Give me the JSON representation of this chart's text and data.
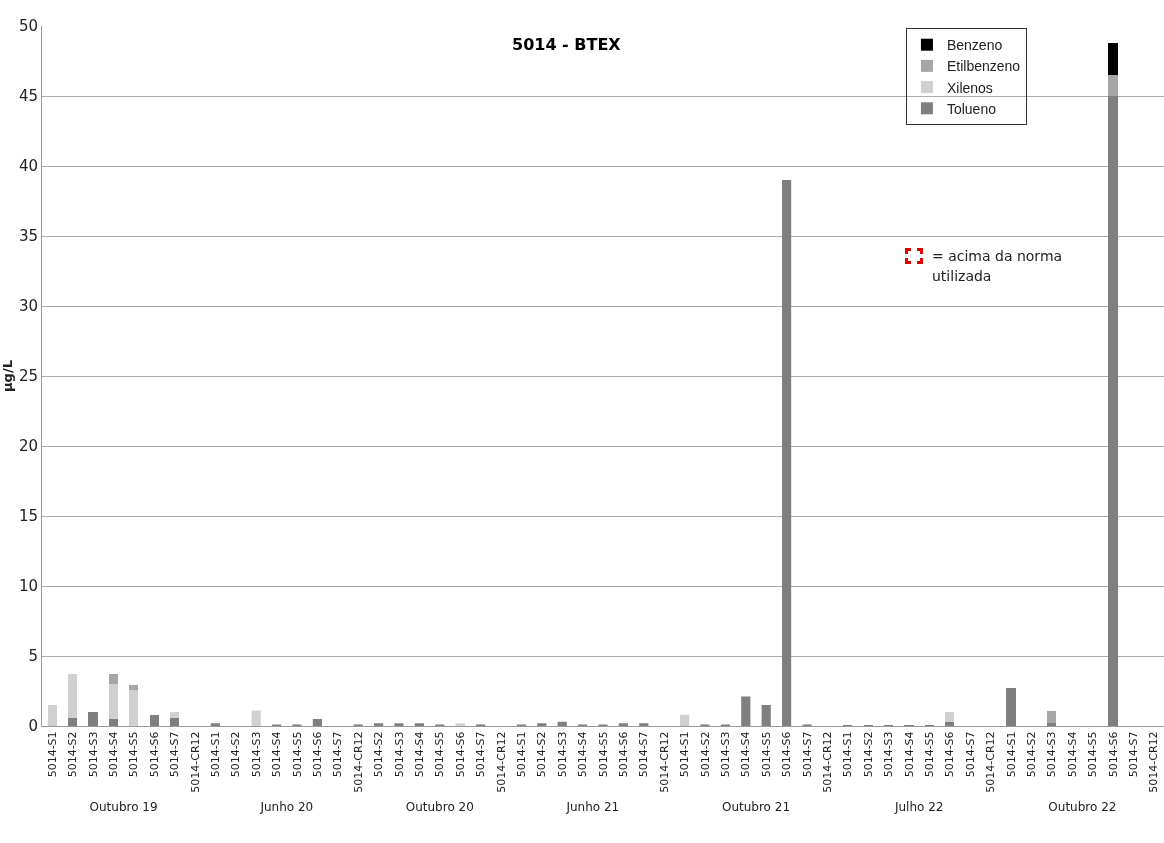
{
  "chart_data": [
    {
      "type": "bar",
      "stacked": true,
      "ylabel": "µg/L",
      "xlabel": "Outubro 19",
      "categories": [
        "5014-S1",
        "5014-S2",
        "5014-S3",
        "5014-S4",
        "5014-S5",
        "5014-S6",
        "5014-S7",
        "5014-CR12"
      ],
      "ylim": [
        0,
        50
      ],
      "yticks": [
        0,
        5,
        10,
        15,
        20,
        25,
        30,
        35,
        40,
        45,
        50
      ],
      "grid": "y",
      "legend": false,
      "series": [
        {
          "color": "#7f7f7f",
          "values": [
            0,
            0.6,
            1.0,
            0.5,
            0,
            0.8,
            0.6,
            0
          ]
        },
        {
          "color": "#d0d0d0",
          "values": [
            1.5,
            3.1,
            0,
            2.5,
            2.6,
            0,
            0.4,
            0
          ]
        },
        {
          "color": "#a6a6a6",
          "values": [
            0,
            0,
            0,
            0.7,
            0.3,
            0,
            0,
            0
          ]
        }
      ]
    },
    {
      "type": "bar",
      "xlabel": "Junho 20",
      "categories": [
        "5014-S1",
        "5014-S2",
        "5014-S3",
        "5014-S4",
        "5014-S5",
        "5014-S6",
        "5014-S7",
        "5014-CR12"
      ],
      "ylim": [
        0,
        50
      ],
      "yticks": [
        0,
        5,
        10,
        15,
        20,
        25,
        30,
        35,
        40,
        45,
        50
      ],
      "grid": "y",
      "legend": false,
      "tick_labels": "x",
      "series": [
        {
          "color": "#7f7f7f",
          "values": [
            0.2,
            0,
            0,
            0.1,
            0.1,
            0.5,
            0,
            0.1
          ]
        },
        {
          "color": "#d0d0d0",
          "values": [
            0,
            0,
            1.1,
            0,
            0,
            0,
            0,
            0
          ]
        }
      ]
    },
    {
      "type": "bar",
      "xlabel": "Outubro 20",
      "categories": [
        "5014-S2",
        "5014-S3",
        "5014-S4",
        "5014-S5",
        "5014-S6",
        "5014-S7",
        "5014-CR12"
      ],
      "ylim": [
        0,
        50
      ],
      "yticks": [
        0,
        5,
        10,
        15,
        20,
        25,
        30,
        35,
        40,
        45,
        50
      ],
      "grid": "y",
      "legend": false,
      "tick_labels": "x",
      "series": [
        {
          "color": "#7f7f7f",
          "values": [
            0.2,
            0.2,
            0.2,
            0.1,
            0,
            0.1,
            0
          ]
        },
        {
          "color": "#d0d0d0",
          "values": [
            0,
            0,
            0,
            0,
            0.2,
            0,
            0
          ]
        }
      ]
    },
    {
      "type": "bar",
      "title": "5014 - BTEX",
      "xlabel": "Junho 21",
      "categories": [
        "5014-S1",
        "5014-S2",
        "5014-S3",
        "5014-S4",
        "5014-S5",
        "5014-S6",
        "5014-S7",
        "5014-CR12"
      ],
      "ylim": [
        0,
        50
      ],
      "yticks": [
        0,
        5,
        10,
        15,
        20,
        25,
        30,
        35,
        40,
        45,
        50
      ],
      "grid": "y",
      "legend": false,
      "tick_labels": "x",
      "series": [
        {
          "color": "#7f7f7f",
          "values": [
            0.1,
            0.2,
            0.3,
            0.1,
            0.1,
            0.2,
            0.2,
            0
          ]
        }
      ]
    },
    {
      "type": "bar",
      "xlabel": "Outubro 21",
      "categories": [
        "5014-S1",
        "5014-S2",
        "5014-S3",
        "5014-S4",
        "5014-S5",
        "5014-S6",
        "5014-S7",
        "5014-CR12"
      ],
      "ylim": [
        0,
        50
      ],
      "yticks": [
        0,
        5,
        10,
        15,
        20,
        25,
        30,
        35,
        40,
        45,
        50
      ],
      "grid": "y",
      "legend": false,
      "tick_labels": "x",
      "series": [
        {
          "color": "#7f7f7f",
          "values": [
            0,
            0.1,
            0.1,
            2.1,
            1.5,
            39.0,
            0.1,
            0
          ]
        },
        {
          "color": "#d0d0d0",
          "values": [
            0.8,
            0,
            0,
            0,
            0,
            0,
            0,
            0
          ]
        }
      ]
    },
    {
      "type": "bar",
      "stacked": true,
      "xlabel": "Julho 22",
      "categories": [
        "5014-S1",
        "5014-S2",
        "5014-S3",
        "5014-S4",
        "5014-S5",
        "5014-S6",
        "5014-S7",
        "5014-CR12"
      ],
      "ylim": [
        0,
        50
      ],
      "yticks": [
        0,
        5,
        10,
        15,
        20,
        25,
        30,
        35,
        40,
        45,
        50
      ],
      "grid": "y",
      "legend": false,
      "tick_labels": "x",
      "series": [
        {
          "color": "#7f7f7f",
          "values": [
            0.1,
            0.1,
            0.1,
            0.1,
            0.1,
            0.3,
            0,
            0
          ]
        },
        {
          "color": "#d0d0d0",
          "values": [
            0,
            0,
            0,
            0,
            0,
            0.7,
            0,
            0
          ]
        }
      ]
    },
    {
      "type": "bar",
      "stacked": true,
      "xlabel": "Outubro 22",
      "categories": [
        "5014-S1",
        "5014-S2",
        "5014-S3",
        "5014-S4",
        "5014-S5",
        "5014-S6",
        "5014-S7",
        "5014-CR12"
      ],
      "ylim": [
        0,
        50
      ],
      "yticks": [
        0,
        5,
        10,
        15,
        20,
        25,
        30,
        35,
        40,
        45,
        50
      ],
      "grid": "y",
      "legend": "top left",
      "tick_labels": "x",
      "annotations": [
        "=  acima da norma utilizada"
      ],
      "series": [
        {
          "name": "Tolueno",
          "color": "#7f7f7f",
          "values": [
            2.7,
            0,
            0.2,
            0,
            0,
            45.0,
            0,
            0
          ]
        },
        {
          "name": "Xilenos",
          "color": "#d0d0d0",
          "values": [
            0,
            0,
            0,
            0,
            0,
            0,
            0,
            0
          ]
        },
        {
          "name": "Etilbenzeno",
          "color": "#a6a6a6",
          "values": [
            0,
            0,
            0.9,
            0,
            0,
            1.5,
            0,
            0
          ]
        },
        {
          "name": "Benzeno",
          "color": "#000000",
          "values": [
            0,
            0,
            0,
            0,
            0,
            2.3,
            0,
            0
          ]
        }
      ]
    }
  ]
}
